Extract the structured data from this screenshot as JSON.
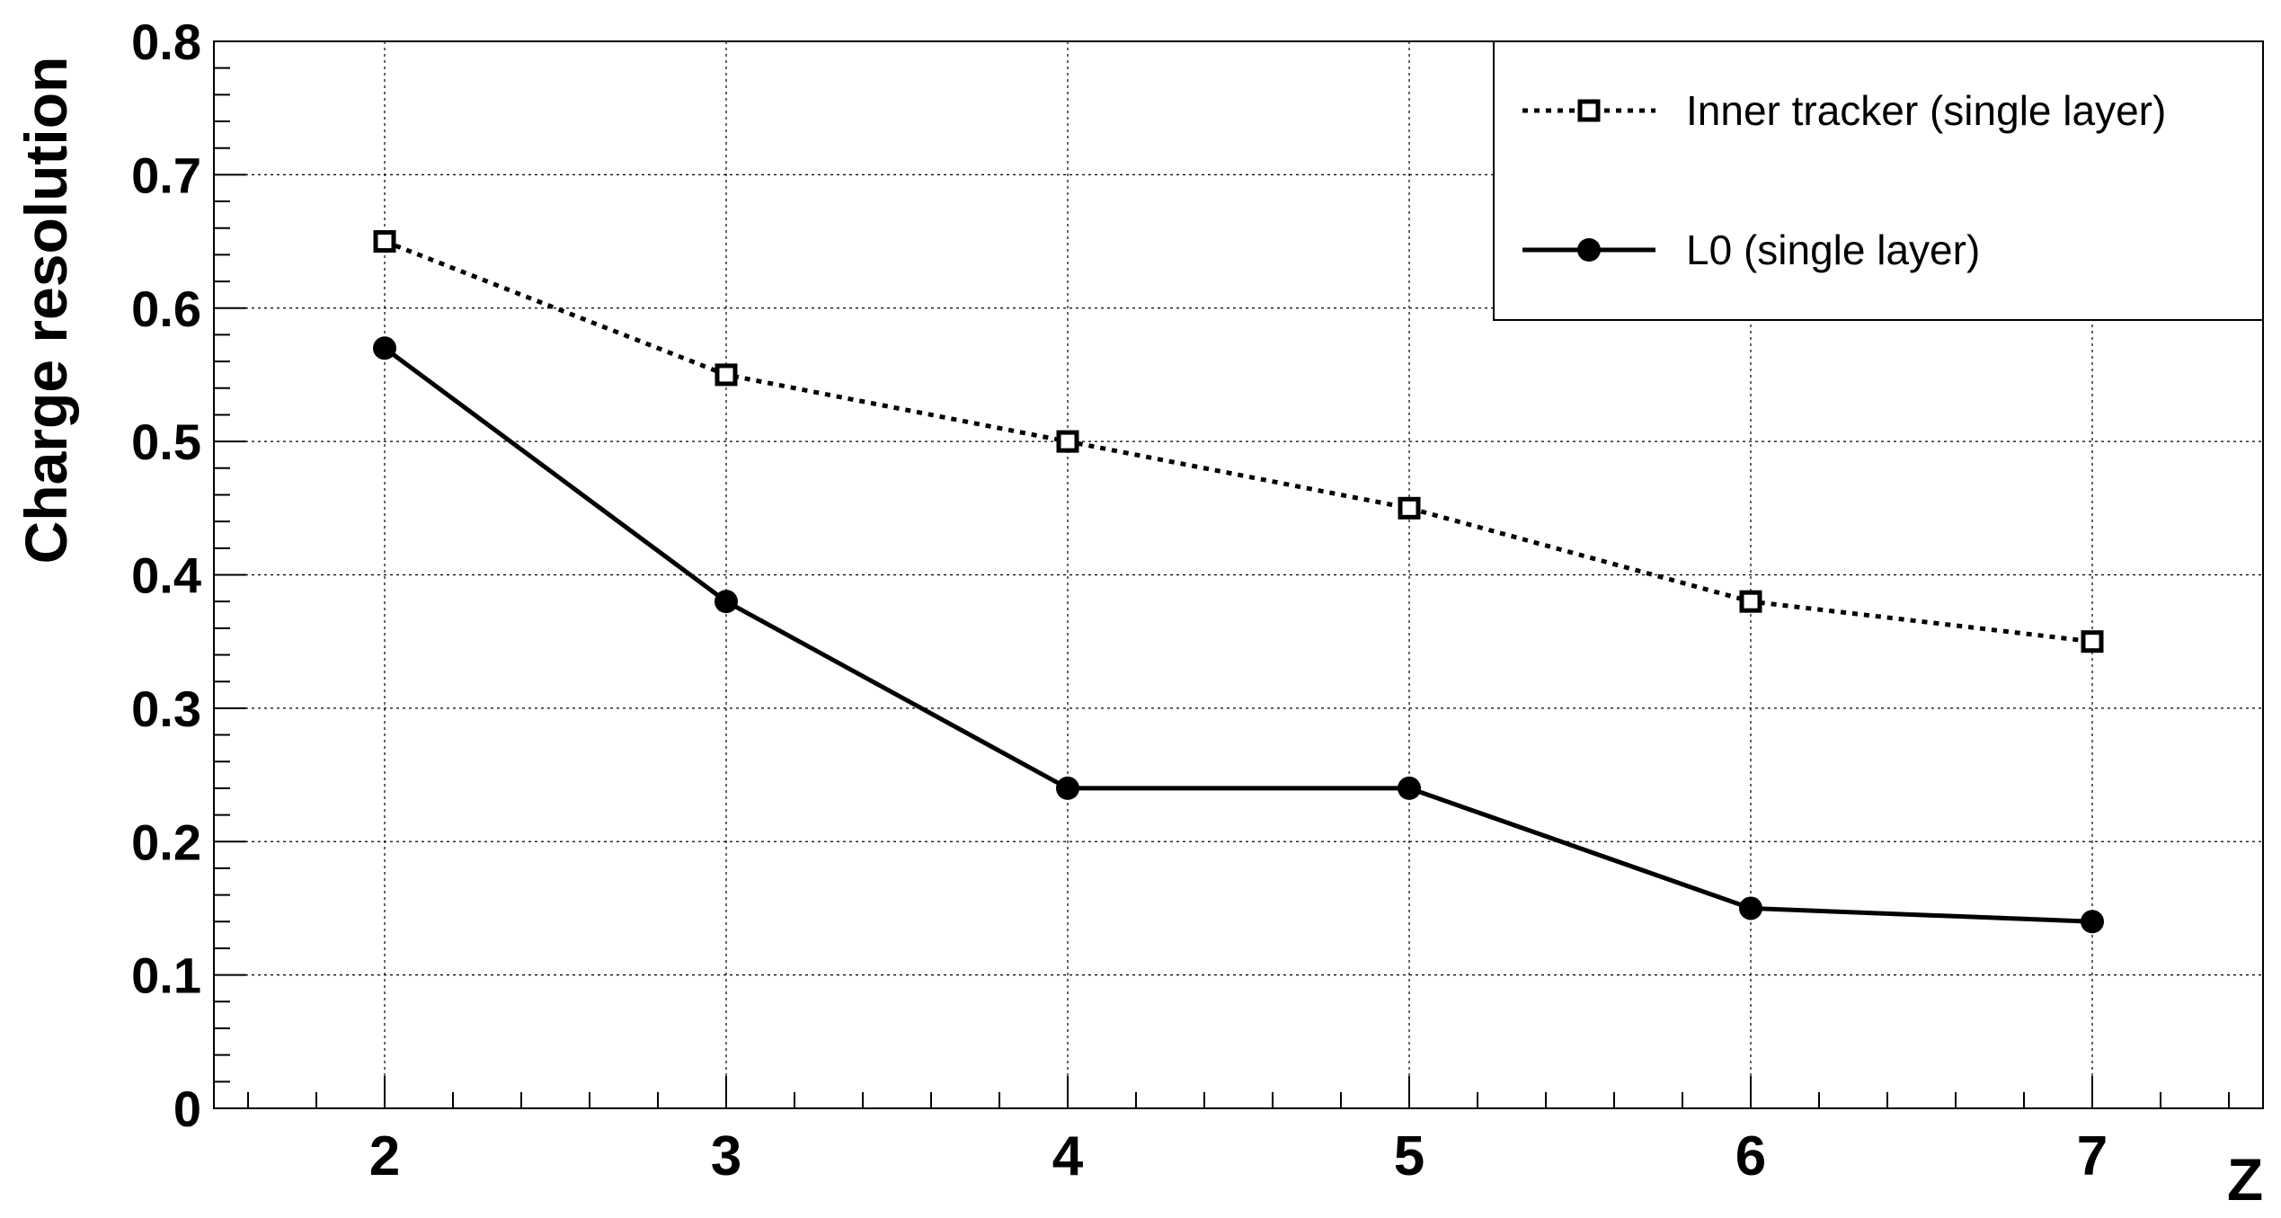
{
  "chart_data": {
    "type": "line",
    "xlabel": "Z",
    "ylabel": "Charge resolution",
    "xlim": [
      1.5,
      7.5
    ],
    "ylim": [
      0,
      0.8
    ],
    "x_ticks": [
      "2",
      "3",
      "4",
      "5",
      "6",
      "7"
    ],
    "y_ticks": [
      "0",
      "0.1",
      "0.2",
      "0.3",
      "0.4",
      "0.5",
      "0.6",
      "0.7",
      "0.8"
    ],
    "grid": true,
    "legend_position": "top-right",
    "x": [
      2,
      3,
      4,
      5,
      6,
      7
    ],
    "series": [
      {
        "name": "Inner tracker (single layer)",
        "values": [
          0.65,
          0.55,
          0.5,
          0.45,
          0.38,
          0.35
        ],
        "line_style": "dotted",
        "marker": "open-square",
        "color": "#000000"
      },
      {
        "name": "L0 (single layer)",
        "values": [
          0.57,
          0.38,
          0.24,
          0.24,
          0.15,
          0.14
        ],
        "line_style": "solid",
        "marker": "filled-circle",
        "color": "#000000"
      }
    ]
  }
}
